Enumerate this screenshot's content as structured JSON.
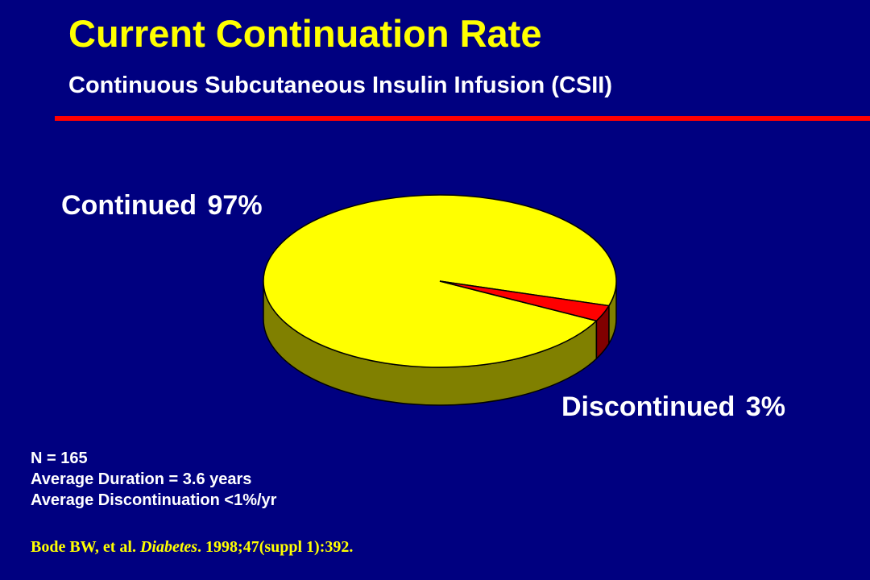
{
  "slide": {
    "title": "Current Continuation Rate",
    "subtitle": "Continuous Subcutaneous Insulin Infusion (CSII)",
    "notes": [
      "N = 165",
      "Average Duration = 3.6 years",
      "Average Discontinuation <1%/yr"
    ],
    "citation": {
      "authors": "Bode BW, et al. ",
      "journal": "Diabetes",
      "details": ". 1998;47(suppl 1):392."
    },
    "colors": {
      "background": "#000080",
      "title": "#FFFF00",
      "divider": "#FF0000"
    }
  },
  "chart_data": {
    "type": "pie",
    "style": "3d",
    "slices": [
      {
        "label": "Continued",
        "value": 97,
        "display": "Continued 97%",
        "color": "#FFFF00",
        "side_color": "#808000"
      },
      {
        "label": "Discontinued",
        "value": 3,
        "display": "Discontinued 3%",
        "color": "#FF0000",
        "side_color": "#800000"
      }
    ]
  }
}
